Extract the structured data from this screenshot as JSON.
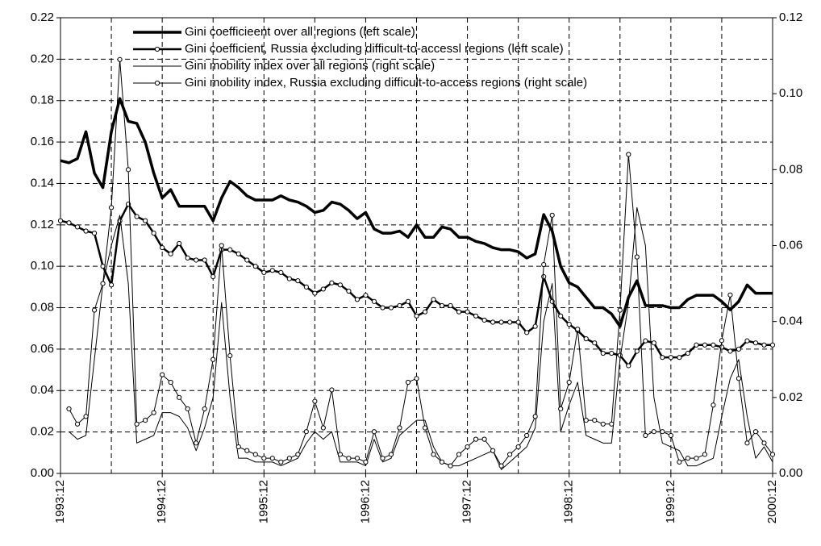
{
  "chart_data": {
    "type": "line",
    "categories": [
      "1993:12",
      null,
      null,
      null,
      null,
      null,
      null,
      null,
      null,
      null,
      null,
      null,
      "1994:12",
      null,
      null,
      null,
      null,
      null,
      null,
      null,
      null,
      null,
      null,
      null,
      "1995:12",
      null,
      null,
      null,
      null,
      null,
      null,
      null,
      null,
      null,
      null,
      null,
      "1996:12",
      null,
      null,
      null,
      null,
      null,
      null,
      null,
      null,
      null,
      null,
      null,
      "1997:12",
      null,
      null,
      null,
      null,
      null,
      null,
      null,
      null,
      null,
      null,
      null,
      "1998:12",
      null,
      null,
      null,
      null,
      null,
      null,
      null,
      null,
      null,
      null,
      null,
      "1999:12",
      null,
      null,
      null,
      null,
      null,
      null,
      null,
      null,
      null,
      null,
      null,
      "2000:12"
    ],
    "ylim": [
      0,
      0.22
    ],
    "yticks": [
      {
        "value": 0,
        "label": "0.00"
      },
      0.02,
      0.04,
      0.06,
      0.08,
      {
        "value": 0.1,
        "label": "0.10"
      },
      0.12,
      0.14,
      0.16,
      0.18,
      {
        "value": 0.2,
        "label": "0.20"
      },
      0.22
    ],
    "y2lim": [
      0,
      0.12
    ],
    "y2ticks": [
      {
        "value": 0,
        "label": "0.00"
      },
      0.02,
      0.04,
      0.06,
      0.08,
      {
        "value": 0.1,
        "label": "0.10"
      },
      0.12
    ],
    "grid": true,
    "legend": "upper left",
    "series": [
      {
        "name": "Gini coefficieent over all regions (left scale)",
        "color": "#000000",
        "width": 3.5,
        "markers": false,
        "values": [
          0.151,
          0.15,
          0.152,
          0.165,
          0.145,
          0.138,
          0.165,
          0.181,
          0.17,
          0.169,
          0.16,
          0.145,
          0.133,
          0.137,
          0.129,
          0.129,
          0.129,
          0.129,
          0.122,
          0.133,
          0.141,
          0.138,
          0.134,
          0.132,
          0.132,
          0.132,
          0.134,
          0.132,
          0.131,
          0.129,
          0.126,
          0.127,
          0.131,
          0.13,
          0.127,
          0.123,
          0.126,
          0.118,
          0.116,
          0.116,
          0.117,
          0.114,
          0.12,
          0.114,
          0.114,
          0.119,
          0.118,
          0.114,
          0.114,
          0.112,
          0.111,
          0.109,
          0.108,
          0.108,
          0.107,
          0.104,
          0.106,
          0.125,
          0.117,
          0.1,
          0.092,
          0.09,
          0.085,
          0.08,
          0.08,
          0.077,
          0.071,
          0.085,
          0.093,
          0.081,
          0.081,
          0.081,
          0.08,
          0.08,
          0.084,
          0.086,
          0.086,
          0.086,
          0.083,
          0.079,
          0.083,
          0.091,
          0.087,
          0.087,
          0.087
        ]
      },
      {
        "name": "Gini coefficient, Russia excluding difficult-to-accessl regions (left scale)",
        "color": "#000000",
        "width": 2.5,
        "markers": true,
        "values": [
          0.122,
          0.121,
          0.119,
          0.117,
          0.116,
          0.1,
          0.091,
          0.122,
          0.13,
          0.124,
          0.122,
          0.116,
          0.109,
          0.106,
          0.111,
          0.104,
          0.103,
          0.103,
          0.095,
          0.108,
          0.108,
          0.106,
          0.103,
          0.1,
          0.097,
          0.098,
          0.097,
          0.094,
          0.093,
          0.09,
          0.087,
          0.089,
          0.092,
          0.091,
          0.088,
          0.084,
          0.086,
          0.083,
          0.08,
          0.08,
          0.081,
          0.083,
          0.076,
          0.078,
          0.084,
          0.081,
          0.081,
          0.078,
          0.078,
          0.076,
          0.074,
          0.073,
          0.073,
          0.073,
          0.073,
          0.068,
          0.071,
          0.095,
          0.083,
          0.076,
          0.072,
          0.069,
          0.065,
          0.063,
          0.058,
          0.058,
          0.057,
          0.052,
          0.059,
          0.064,
          0.063,
          0.056,
          0.056,
          0.056,
          0.058,
          0.062,
          0.062,
          0.062,
          0.061,
          0.059,
          0.06,
          0.064,
          0.063,
          0.062,
          0.062
        ]
      },
      {
        "name": "Gini mobility index over all regions (right scale)",
        "color": "#000000",
        "width": 1,
        "markers": false,
        "axis": "y2",
        "values": [
          null,
          0.011,
          0.009,
          0.01,
          0.03,
          0.05,
          0.06,
          0.068,
          0.05,
          0.008,
          0.009,
          0.01,
          0.016,
          0.016,
          0.015,
          0.012,
          0.006,
          0.012,
          0.02,
          0.045,
          0.02,
          0.004,
          0.004,
          0.003,
          0.003,
          0.003,
          0.002,
          0.003,
          0.004,
          0.008,
          0.011,
          0.009,
          0.011,
          0.003,
          0.003,
          0.003,
          0.002,
          0.009,
          0.003,
          0.004,
          0.01,
          0.012,
          0.014,
          0.014,
          0.007,
          0.003,
          0.002,
          0.002,
          0.003,
          0.004,
          0.005,
          0.006,
          0.001,
          0.003,
          0.005,
          0.007,
          0.012,
          0.04,
          0.05,
          0.011,
          0.018,
          0.024,
          0.01,
          0.009,
          0.008,
          0.008,
          0.03,
          0.045,
          0.07,
          0.06,
          0.02,
          0.008,
          0.007,
          0.006,
          0.002,
          0.002,
          0.003,
          0.004,
          0.015,
          0.025,
          0.03,
          0.015,
          0.004,
          0.007,
          0.003
        ]
      },
      {
        "name": "Gini mobility index, Russia excluding difficult-to-access regions (right scale)",
        "color": "#000000",
        "width": 1,
        "markers": true,
        "axis": "y2",
        "values": [
          null,
          0.017,
          0.013,
          0.015,
          0.043,
          0.05,
          0.07,
          0.109,
          0.08,
          0.013,
          0.014,
          0.016,
          0.026,
          0.024,
          0.02,
          0.017,
          0.008,
          0.017,
          0.03,
          0.06,
          0.031,
          0.007,
          0.006,
          0.005,
          0.004,
          0.004,
          0.003,
          0.004,
          0.005,
          0.011,
          0.019,
          0.012,
          0.022,
          0.005,
          0.004,
          0.004,
          0.003,
          0.011,
          0.004,
          0.005,
          0.012,
          0.024,
          0.025,
          0.012,
          0.005,
          0.003,
          0.002,
          0.005,
          0.007,
          0.009,
          0.009,
          0.006,
          0.002,
          0.005,
          0.007,
          0.01,
          0.015,
          0.055,
          0.068,
          0.017,
          0.024,
          0.038,
          0.014,
          0.014,
          0.013,
          0.013,
          0.043,
          0.084,
          0.057,
          0.01,
          0.011,
          0.011,
          0.01,
          0.003,
          0.004,
          0.004,
          0.005,
          0.018,
          0.035,
          0.047,
          0.025,
          0.008,
          0.011,
          0.008,
          0.005
        ]
      }
    ]
  }
}
